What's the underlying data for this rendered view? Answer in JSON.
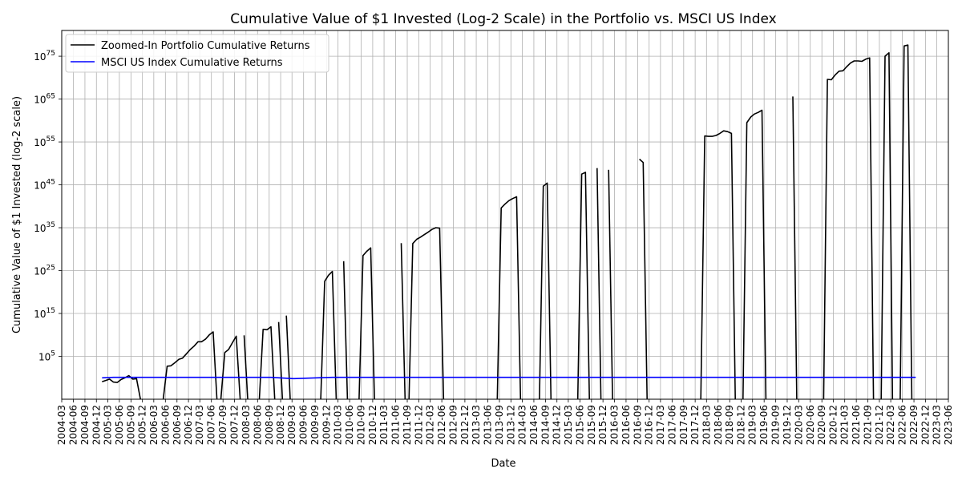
{
  "chart_data": {
    "type": "line",
    "title": "Cumulative Value of $1 Invested (Log-2 Scale) in the Portfolio vs. MSCI US Index",
    "xlabel": "Date",
    "ylabel": "Cumulative Value of $1 Invested (log-2 scale)",
    "y_scale": "log",
    "grid": true,
    "legend_position": "top-left",
    "xlim": [
      "2004-03-01",
      "2023-06-01"
    ],
    "ylim_log10": [
      -5,
      81
    ],
    "x_tick_labels": [
      "2004-03",
      "2004-06",
      "2004-09",
      "2004-12",
      "2005-03",
      "2005-06",
      "2005-09",
      "2005-12",
      "2006-03",
      "2006-06",
      "2006-09",
      "2006-12",
      "2007-03",
      "2007-06",
      "2007-09",
      "2007-12",
      "2008-03",
      "2008-06",
      "2008-09",
      "2008-12",
      "2009-03",
      "2009-06",
      "2009-09",
      "2009-12",
      "2010-03",
      "2010-06",
      "2010-09",
      "2010-12",
      "2011-03",
      "2011-06",
      "2011-09",
      "2011-12",
      "2012-03",
      "2012-06",
      "2012-09",
      "2012-12",
      "2013-03",
      "2013-06",
      "2013-09",
      "2013-12",
      "2014-03",
      "2014-06",
      "2014-09",
      "2014-12",
      "2015-03",
      "2015-06",
      "2015-09",
      "2015-12",
      "2016-03",
      "2016-06",
      "2016-09",
      "2016-12",
      "2017-03",
      "2017-06",
      "2017-09",
      "2017-12",
      "2018-03",
      "2018-06",
      "2018-09",
      "2018-12",
      "2019-03",
      "2019-06",
      "2019-09",
      "2019-12",
      "2020-03",
      "2020-06",
      "2020-09",
      "2020-12",
      "2021-03",
      "2021-06",
      "2021-09",
      "2021-12",
      "2022-03",
      "2022-06",
      "2022-09",
      "2022-12",
      "2023-03",
      "2023-06"
    ],
    "y_ticks": [
      {
        "exp": 5,
        "base": "10",
        "sup": "5"
      },
      {
        "exp": 15,
        "base": "10",
        "sup": "15"
      },
      {
        "exp": 25,
        "base": "10",
        "sup": "25"
      },
      {
        "exp": 35,
        "base": "10",
        "sup": "35"
      },
      {
        "exp": 45,
        "base": "10",
        "sup": "45"
      },
      {
        "exp": 55,
        "base": "10",
        "sup": "55"
      },
      {
        "exp": 65,
        "base": "10",
        "sup": "65"
      },
      {
        "exp": 75,
        "base": "10",
        "sup": "75"
      }
    ],
    "series": [
      {
        "name": "Zoomed-In Portfolio Cumulative Returns",
        "color": "#000000",
        "segments": [
          [
            [
              "2005-01",
              -0.9
            ],
            [
              "2005-02",
              -0.6
            ],
            [
              "2005-03",
              -0.3
            ],
            [
              "2005-04",
              -1.0
            ],
            [
              "2005-05",
              -1.1
            ],
            [
              "2005-06",
              -0.4
            ],
            [
              "2005-07",
              0.0
            ],
            [
              "2005-08",
              0.5
            ],
            [
              "2005-09",
              -0.3
            ],
            [
              "2005-10",
              -0.2
            ],
            [
              "2005-11",
              -6.0
            ]
          ],
          [
            [
              "2006-05",
              -6.0
            ],
            [
              "2006-06",
              2.7
            ],
            [
              "2006-07",
              2.8
            ],
            [
              "2006-08",
              3.5
            ],
            [
              "2006-09",
              4.3
            ],
            [
              "2006-10",
              4.6
            ],
            [
              "2006-11",
              5.6
            ],
            [
              "2006-12",
              6.6
            ],
            [
              "2007-01",
              7.4
            ],
            [
              "2007-02",
              8.4
            ],
            [
              "2007-03",
              8.4
            ],
            [
              "2007-04",
              9.0
            ],
            [
              "2007-05",
              10.0
            ],
            [
              "2007-06",
              10.7
            ],
            [
              "2007-07",
              -6.0
            ]
          ],
          [
            [
              "2007-08",
              -6.0
            ],
            [
              "2007-09",
              5.9
            ],
            [
              "2007-10",
              6.6
            ],
            [
              "2007-11",
              8.2
            ],
            [
              "2007-12",
              9.7
            ],
            [
              "2008-01",
              -6.0
            ]
          ],
          [
            [
              "2008-02",
              9.9
            ],
            [
              "2008-03",
              -6.0
            ]
          ],
          [
            [
              "2008-06",
              -6.0
            ],
            [
              "2008-07",
              11.3
            ],
            [
              "2008-08",
              11.2
            ],
            [
              "2008-09",
              11.9
            ],
            [
              "2008-10",
              -6.0
            ]
          ],
          [
            [
              "2008-11",
              13.0
            ],
            [
              "2008-12",
              -6.0
            ]
          ],
          [
            [
              "2009-01",
              14.5
            ],
            [
              "2009-02",
              -6.0
            ]
          ],
          [
            [
              "2009-10",
              -6.0
            ],
            [
              "2009-11",
              22.5
            ],
            [
              "2009-12",
              23.9
            ],
            [
              "2010-01",
              24.8
            ],
            [
              "2010-02",
              -6.0
            ]
          ],
          [
            [
              "2010-04",
              27.2
            ],
            [
              "2010-05",
              -6.0
            ]
          ],
          [
            [
              "2010-08",
              -6.0
            ],
            [
              "2010-09",
              28.5
            ],
            [
              "2010-10",
              29.5
            ],
            [
              "2010-11",
              30.3
            ],
            [
              "2010-12",
              -6.0
            ]
          ],
          [
            [
              "2011-07",
              31.4
            ],
            [
              "2011-08",
              -6.0
            ]
          ],
          [
            [
              "2011-09",
              -6.0
            ],
            [
              "2011-10",
              31.3
            ],
            [
              "2011-11",
              32.3
            ],
            [
              "2011-12",
              32.8
            ],
            [
              "2012-01",
              33.4
            ],
            [
              "2012-02",
              34.0
            ],
            [
              "2012-03",
              34.6
            ],
            [
              "2012-04",
              35.0
            ],
            [
              "2012-05",
              34.9
            ],
            [
              "2012-06",
              -6.0
            ]
          ],
          [
            [
              "2013-08",
              -6.0
            ],
            [
              "2013-09",
              39.6
            ],
            [
              "2013-10",
              40.5
            ],
            [
              "2013-11",
              41.3
            ],
            [
              "2013-12",
              41.8
            ],
            [
              "2014-01",
              42.2
            ],
            [
              "2014-02",
              -6.0
            ]
          ],
          [
            [
              "2014-07",
              -6.0
            ],
            [
              "2014-08",
              44.7
            ],
            [
              "2014-09",
              45.4
            ],
            [
              "2014-10",
              -6.0
            ]
          ],
          [
            [
              "2015-05",
              -6.0
            ],
            [
              "2015-06",
              47.5
            ],
            [
              "2015-07",
              47.9
            ],
            [
              "2015-08",
              -6.0
            ]
          ],
          [
            [
              "2015-10",
              48.9
            ],
            [
              "2015-11",
              -6.0
            ]
          ],
          [
            [
              "2016-01",
              48.5
            ],
            [
              "2016-02",
              -6.0
            ]
          ],
          [
            [
              "2016-09",
              51.0
            ],
            [
              "2016-10",
              50.2
            ],
            [
              "2016-11",
              -6.0
            ]
          ],
          [
            [
              "2018-01",
              -6.0
            ],
            [
              "2018-02",
              56.4
            ],
            [
              "2018-03",
              56.3
            ],
            [
              "2018-04",
              56.3
            ],
            [
              "2018-05",
              56.5
            ],
            [
              "2018-06",
              57.0
            ],
            [
              "2018-07",
              57.6
            ],
            [
              "2018-08",
              57.4
            ],
            [
              "2018-09",
              57.0
            ],
            [
              "2018-10",
              -6.0
            ]
          ],
          [
            [
              "2018-12",
              -6.0
            ],
            [
              "2019-01",
              59.5
            ],
            [
              "2019-02",
              60.8
            ],
            [
              "2019-03",
              61.5
            ],
            [
              "2019-04",
              61.9
            ],
            [
              "2019-05",
              62.4
            ],
            [
              "2019-06",
              -6.0
            ]
          ],
          [
            [
              "2020-01",
              65.6
            ],
            [
              "2020-02",
              -6.0
            ]
          ],
          [
            [
              "2020-09",
              -6.0
            ],
            [
              "2020-10",
              69.6
            ],
            [
              "2020-11",
              69.5
            ],
            [
              "2020-12",
              70.6
            ],
            [
              "2021-01",
              71.5
            ],
            [
              "2021-02",
              71.6
            ],
            [
              "2021-03",
              72.5
            ],
            [
              "2021-04",
              73.4
            ],
            [
              "2021-05",
              73.9
            ],
            [
              "2021-06",
              73.9
            ],
            [
              "2021-07",
              73.8
            ],
            [
              "2021-08",
              74.3
            ],
            [
              "2021-09",
              74.6
            ],
            [
              "2021-10",
              -6.0
            ]
          ],
          [
            [
              "2021-12",
              -6.0
            ],
            [
              "2022-01",
              75.0
            ],
            [
              "2022-02",
              75.8
            ],
            [
              "2022-03",
              -6.0
            ]
          ],
          [
            [
              "2022-05",
              -6.0
            ],
            [
              "2022-06",
              77.4
            ],
            [
              "2022-07",
              77.6
            ],
            [
              "2022-08",
              -6.0
            ]
          ]
        ]
      },
      {
        "name": "MSCI US Index Cumulative Returns",
        "color": "#0000ff",
        "segments": [
          [
            [
              "2005-01",
              0.0
            ],
            [
              "2005-04",
              0.1
            ],
            [
              "2005-07",
              0.1
            ],
            [
              "2005-10",
              0.1
            ],
            [
              "2006-01",
              0.1
            ],
            [
              "2007-01",
              0.1
            ],
            [
              "2008-01",
              0.1
            ],
            [
              "2008-09",
              0.1
            ],
            [
              "2009-01",
              -0.1
            ],
            [
              "2009-03",
              -0.2
            ],
            [
              "2009-06",
              -0.1
            ],
            [
              "2009-09",
              0.0
            ],
            [
              "2010-01",
              0.1
            ],
            [
              "2012-01",
              0.1
            ],
            [
              "2016-01",
              0.1
            ],
            [
              "2020-01",
              0.1
            ],
            [
              "2022-08",
              0.1
            ],
            [
              "2022-09",
              0.1
            ]
          ]
        ]
      }
    ]
  }
}
